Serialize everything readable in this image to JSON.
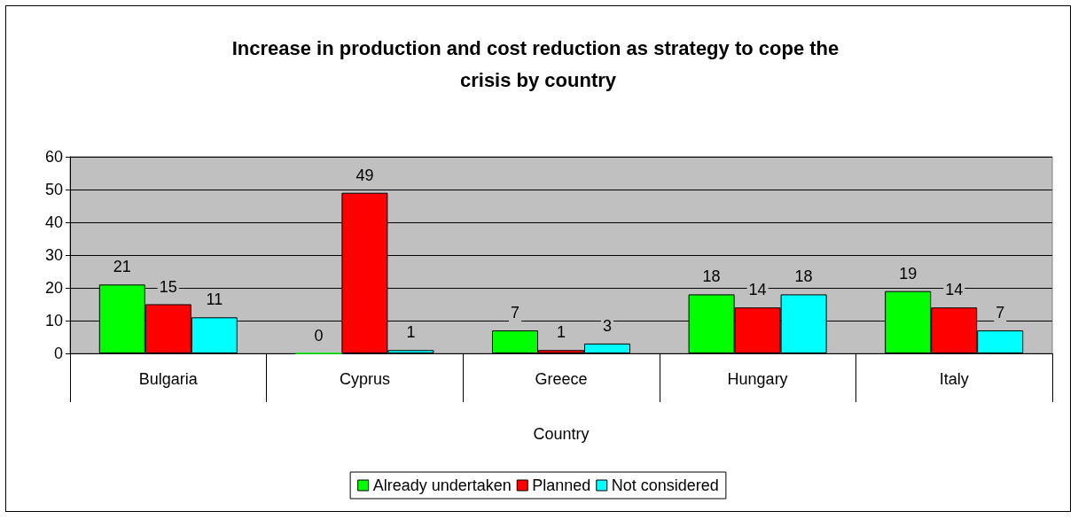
{
  "chart_data": {
    "type": "bar",
    "title": "Increase in production and cost reduction as strategy to cope the crisis by country",
    "xlabel": "Country",
    "categories": [
      "Bulgaria",
      "Cyprus",
      "Greece",
      "Hungary",
      "Italy"
    ],
    "series": [
      {
        "name": "Already undertaken",
        "color": "#00ff00",
        "values": [
          21,
          0,
          7,
          18,
          19
        ]
      },
      {
        "name": "Planned",
        "color": "#ff0000",
        "values": [
          15,
          49,
          1,
          14,
          14
        ]
      },
      {
        "name": "Not considered",
        "color": "#00ffff",
        "values": [
          11,
          1,
          3,
          18,
          7
        ]
      }
    ],
    "ylim": [
      0,
      60
    ],
    "yticks": [
      0,
      10,
      20,
      30,
      40,
      50,
      60
    ],
    "grid": "y",
    "legend": "bottom",
    "data_labels": true
  }
}
